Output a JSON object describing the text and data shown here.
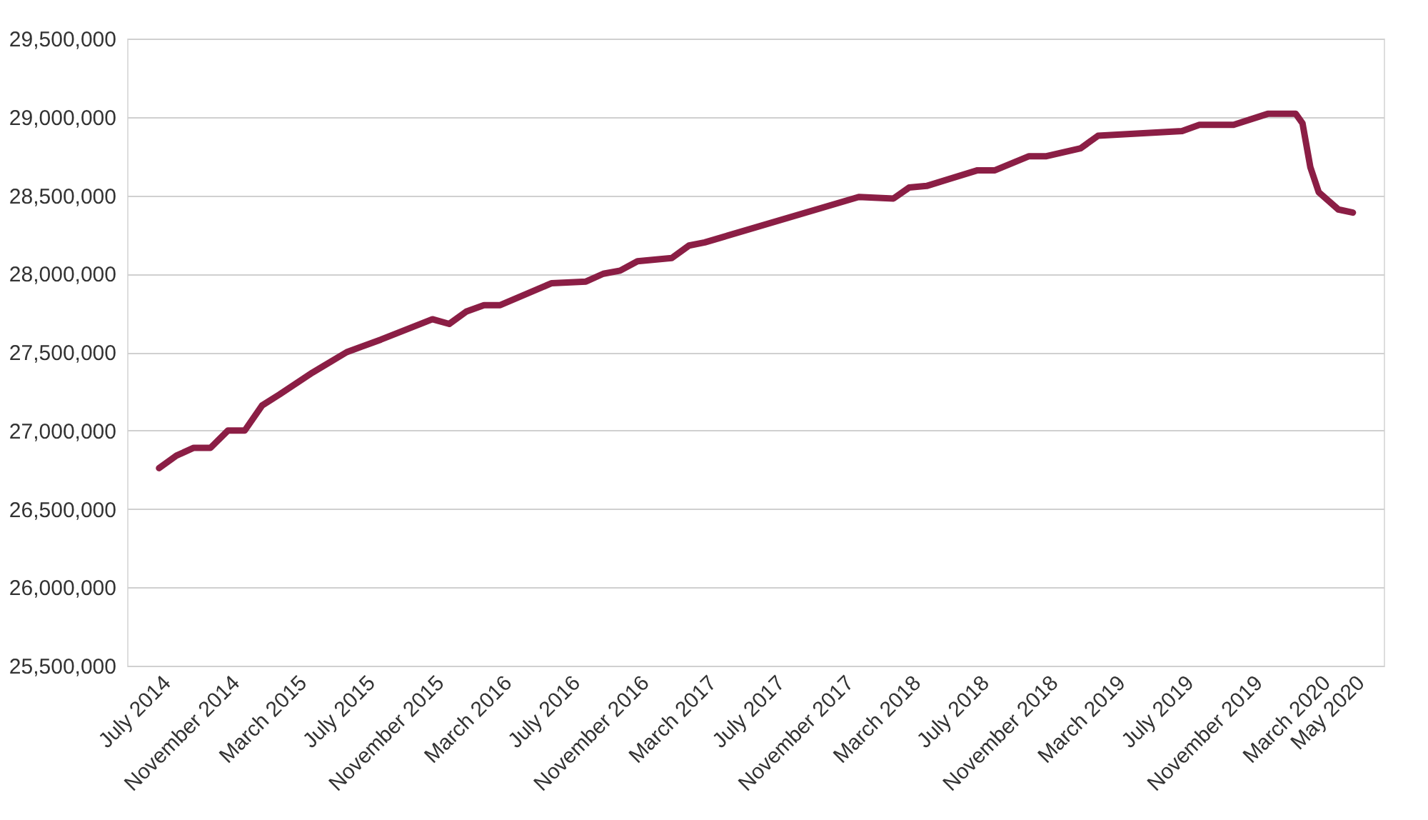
{
  "chart_data": {
    "type": "line",
    "x": [
      "2014-07",
      "2014-08",
      "2014-09",
      "2014-10",
      "2014-11",
      "2014-12",
      "2015-01",
      "2015-02",
      "2015-04",
      "2015-06",
      "2015-08",
      "2015-11",
      "2015-12",
      "2016-01",
      "2016-02",
      "2016-03",
      "2016-06",
      "2016-08",
      "2016-09",
      "2016-10",
      "2016-11",
      "2017-01",
      "2017-02",
      "2017-03",
      "2017-12",
      "2018-02",
      "2018-03",
      "2018-04",
      "2018-07",
      "2018-08",
      "2018-10",
      "2018-11",
      "2019-01",
      "2019-02",
      "2019-07",
      "2019-08",
      "2019-10",
      "2019-12",
      "2020-01-20",
      "2020-02-01",
      "2020-02-15",
      "2020-03-01",
      "2020-04-05",
      "2020-05-01"
    ],
    "series": [
      {
        "color": "#8b1e45",
        "values": [
          26760000,
          26840000,
          26890000,
          26890000,
          27000000,
          27000000,
          27160000,
          27230000,
          27370000,
          27500000,
          27580000,
          27710000,
          27680000,
          27760000,
          27800000,
          27800000,
          27940000,
          27950000,
          28000000,
          28020000,
          28080000,
          28100000,
          28180000,
          28200000,
          28490000,
          28480000,
          28550000,
          28560000,
          28660000,
          28660000,
          28750000,
          28750000,
          28800000,
          28880000,
          28910000,
          28950000,
          28950000,
          29020000,
          29020000,
          28960000,
          28680000,
          28520000,
          28410000,
          28390000
        ]
      }
    ],
    "xlim": [
      "2014-05-05",
      "2020-06-25"
    ],
    "xticks": [
      {
        "value": "2014-07",
        "label": "July 2014"
      },
      {
        "value": "2014-11",
        "label": "November 2014"
      },
      {
        "value": "2015-03",
        "label": "March 2015"
      },
      {
        "value": "2015-07",
        "label": "July 2015"
      },
      {
        "value": "2015-11",
        "label": "November 2015"
      },
      {
        "value": "2016-03",
        "label": "March 2016"
      },
      {
        "value": "2016-07",
        "label": "July 2016"
      },
      {
        "value": "2016-11",
        "label": "November 2016"
      },
      {
        "value": "2017-03",
        "label": "March 2017"
      },
      {
        "value": "2017-07",
        "label": "July 2017"
      },
      {
        "value": "2017-11",
        "label": "November 2017"
      },
      {
        "value": "2018-03",
        "label": "March 2018"
      },
      {
        "value": "2018-07",
        "label": "July 2018"
      },
      {
        "value": "2018-11",
        "label": "November 2018"
      },
      {
        "value": "2019-03",
        "label": "March 2019"
      },
      {
        "value": "2019-07",
        "label": "July 2019"
      },
      {
        "value": "2019-11",
        "label": "November 2019"
      },
      {
        "value": "2020-03",
        "label": "March 2020"
      },
      {
        "value": "2020-05",
        "label": "May 2020"
      }
    ],
    "ylim": [
      25500000,
      29500000
    ],
    "yticks": [
      {
        "value": 25500000,
        "label": "25,500,000"
      },
      {
        "value": 26000000,
        "label": "26,000,000"
      },
      {
        "value": 26500000,
        "label": "26,500,000"
      },
      {
        "value": 27000000,
        "label": "27,000,000"
      },
      {
        "value": 27500000,
        "label": "27,500,000"
      },
      {
        "value": 28000000,
        "label": "28,000,000"
      },
      {
        "value": 28500000,
        "label": "28,500,000"
      },
      {
        "value": 29000000,
        "label": "29,000,000"
      },
      {
        "value": 29500000,
        "label": "29,500,000"
      }
    ],
    "grid": "y",
    "marker": "none",
    "line_style": "solid"
  }
}
